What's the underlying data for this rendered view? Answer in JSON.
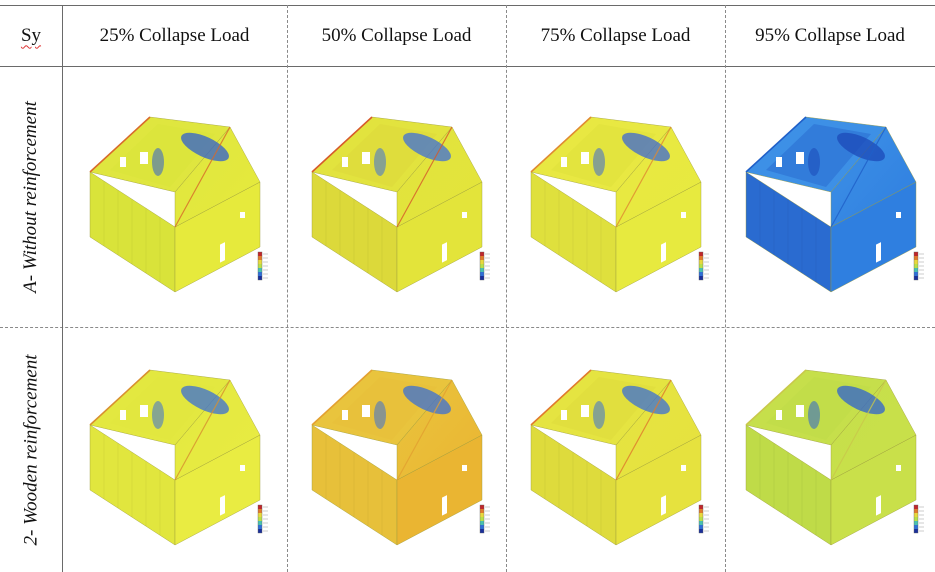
{
  "table": {
    "corner_label": "Sy",
    "columns": [
      "25% Collapse Load",
      "50% Collapse Load",
      "75% Collapse Load",
      "95% Collapse Load"
    ],
    "rows": [
      {
        "label": "A- Without reinforcement",
        "cells": [
          {
            "base": "#e6ea3c",
            "side": "#d9e33a",
            "roof": "#dfe63f",
            "accent": "#2f5fd0",
            "edge": "#d86a2a"
          },
          {
            "base": "#e3e43a",
            "side": "#dcd93a",
            "roof": "#e2e33e",
            "accent": "#3d6fd8",
            "edge": "#d65a2a"
          },
          {
            "base": "#e7ea3f",
            "side": "#dfe03d",
            "roof": "#e8e842",
            "accent": "#3c68d4",
            "edge": "#e08a30"
          },
          {
            "base": "#2f7fe0",
            "side": "#2a6bd0",
            "roof": "#3d90e6",
            "accent": "#1c49b8",
            "edge": "#1f5fc8"
          }
        ]
      },
      {
        "label": "2- Wooden reinforcement",
        "cells": [
          {
            "base": "#e9ec42",
            "side": "#e1e63e",
            "roof": "#e3e840",
            "accent": "#3a6fd6",
            "edge": "#d8902f"
          },
          {
            "base": "#eab532",
            "side": "#e7c03a",
            "roof": "#e9c43d",
            "accent": "#3a6fd6",
            "edge": "#e3a030"
          },
          {
            "base": "#e6e23e",
            "side": "#dedb3c",
            "roof": "#e5e441",
            "accent": "#3a6fd6",
            "edge": "#e07a2c"
          },
          {
            "base": "#c9e04a",
            "side": "#bfdb48",
            "roof": "#c6df4b",
            "accent": "#2e62d0",
            "edge": "#c9c84a"
          }
        ]
      }
    ]
  }
}
